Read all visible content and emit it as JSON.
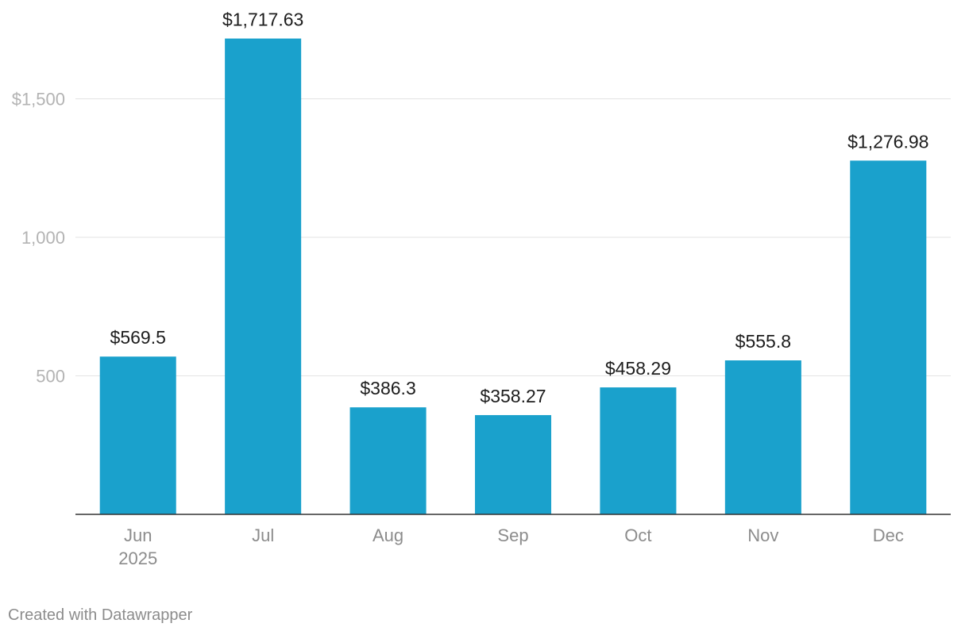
{
  "chart_data": {
    "type": "bar",
    "categories": [
      "Jun",
      "Jul",
      "Aug",
      "Sep",
      "Oct",
      "Nov",
      "Dec"
    ],
    "category_sublabels": [
      "2025",
      "",
      "",
      "",
      "",
      "",
      ""
    ],
    "values": [
      569.5,
      1717.63,
      386.3,
      358.27,
      458.29,
      555.8,
      1276.98
    ],
    "value_labels": [
      "$569.5",
      "$1,717.63",
      "$386.3",
      "$358.27",
      "$458.29",
      "$555.8",
      "$1,276.98"
    ],
    "y_ticks": [
      500,
      1000,
      1500
    ],
    "y_tick_labels": [
      "500",
      "1,000",
      "$1,500"
    ],
    "ylim": [
      0,
      1800
    ],
    "grid": true,
    "bar_color": "#1aa1cc"
  },
  "footer": {
    "credit": "Created with Datawrapper"
  }
}
